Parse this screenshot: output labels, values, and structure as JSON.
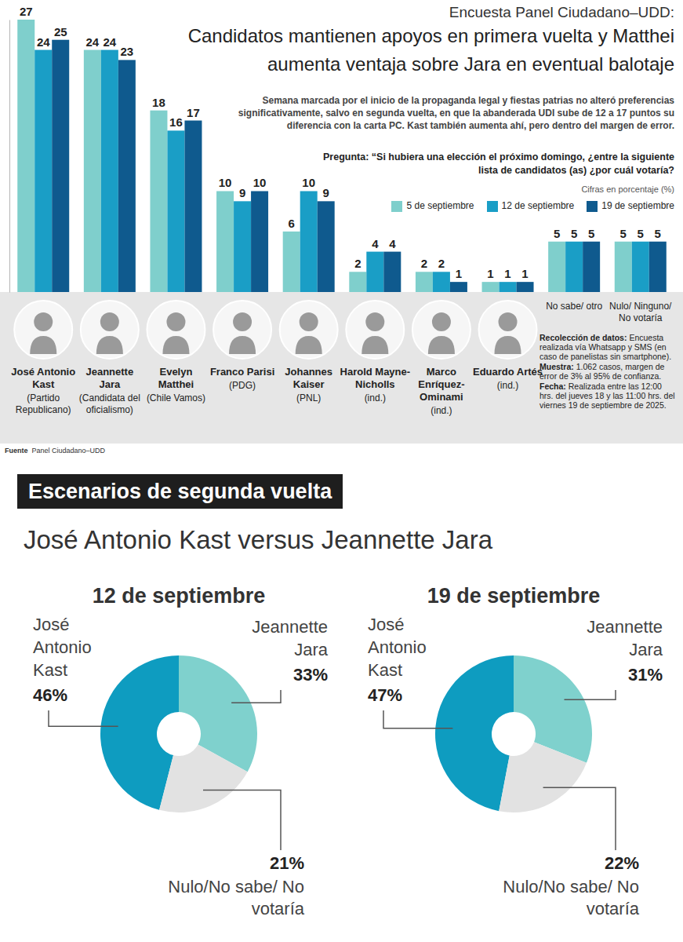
{
  "chart_data": [
    {
      "type": "bar",
      "header": "Encuesta Panel Ciudadano–UDD:",
      "title": "Candidatos mantienen apoyos en primera vuelta y Matthei aumenta ventaja sobre Jara en eventual balotaje",
      "subtitle": "Semana marcada por el inicio de la propaganda legal y fiestas patrias no alteró preferencias significativamente, salvo en segunda vuelta, en que la abanderada UDI sube de 12 a 17 puntos su diferencia con la carta PC. Kast también aumenta ahí, pero dentro del margen de error.",
      "question": "Pregunta: “Si hubiera una elección el próximo domingo, ¿entre la siguiente lista de candidatos (as) ¿por cuál votaría?",
      "units": "Cifras en porcentaje (%)",
      "categories": [
        "José Antonio Kast",
        "Jeannette Jara",
        "Evelyn Matthei",
        "Franco Parisi",
        "Johannes Kaiser",
        "Harold Mayne-Nicholls",
        "Marco Enríquez-Ominami",
        "Eduardo Artés",
        "No sabe/ otro",
        "Nulo/ Ninguno/ No votaría"
      ],
      "category_notes": [
        "(Partido Republicano)",
        "(Candidata del oficialismo)",
        "(Chile Vamos)",
        "(PDG)",
        "(PNL)",
        "(ind.)",
        "(ind.)",
        "(ind.)",
        null,
        null
      ],
      "series": [
        {
          "name": "5 de septiembre",
          "color": "#7fcfcc",
          "values": [
            27,
            24,
            18,
            10,
            6,
            2,
            2,
            1,
            5,
            5
          ]
        },
        {
          "name": "12 de septiembre",
          "color": "#1a9ec6",
          "values": [
            24,
            24,
            16,
            9,
            10,
            4,
            2,
            1,
            5,
            5
          ]
        },
        {
          "name": "19 de septiembre",
          "color": "#0f5a8e",
          "values": [
            25,
            23,
            17,
            10,
            9,
            4,
            1,
            1,
            5,
            5
          ]
        }
      ],
      "ylim": [
        0,
        27
      ],
      "yticks": [],
      "tick_labels": "x",
      "data_labels": true,
      "legend": "top-right",
      "notes": [
        {
          "label": "Recolección de datos:",
          "text": "Encuesta realizada vía Whatsapp y SMS (en caso de panelistas sin smartphone)."
        },
        {
          "label": "Muestra:",
          "text": "1.062 casos, margen de error de 3% al 95% de confianza."
        },
        {
          "label": "Fecha:",
          "text": "Realizada entre las 12:00 hrs. del jueves 18 y las 11:00 hrs. del viernes 19 de septiembre de 2025."
        }
      ],
      "source": {
        "label": "Fuente",
        "text": "Panel Ciudadano–UDD"
      }
    },
    {
      "type": "donut",
      "title": "12 de septiembre",
      "categories": [
        "José Antonio Kast",
        "Jeannette Jara",
        "Nulo/No sabe/ No votaría"
      ],
      "values": [
        46,
        33,
        21
      ],
      "value_labels": [
        "46%",
        "33%",
        "21%"
      ],
      "colors": [
        "#0e9cc0",
        "#7fd1cd",
        "#e2e2e2"
      ],
      "data_labels": true
    },
    {
      "type": "donut",
      "title": "19 de septiembre",
      "categories": [
        "José Antonio Kast",
        "Jeannette Jara",
        "Nulo/No sabe/ No votaría"
      ],
      "values": [
        47,
        31,
        22
      ],
      "value_labels": [
        "47%",
        "31%",
        "22%"
      ],
      "colors": [
        "#0e9cc0",
        "#7fd1cd",
        "#e2e2e2"
      ],
      "data_labels": true
    }
  ],
  "section": {
    "heading": "Escenarios de segunda vuelta",
    "title": "José Antonio Kast versus Jeannette Jara"
  }
}
